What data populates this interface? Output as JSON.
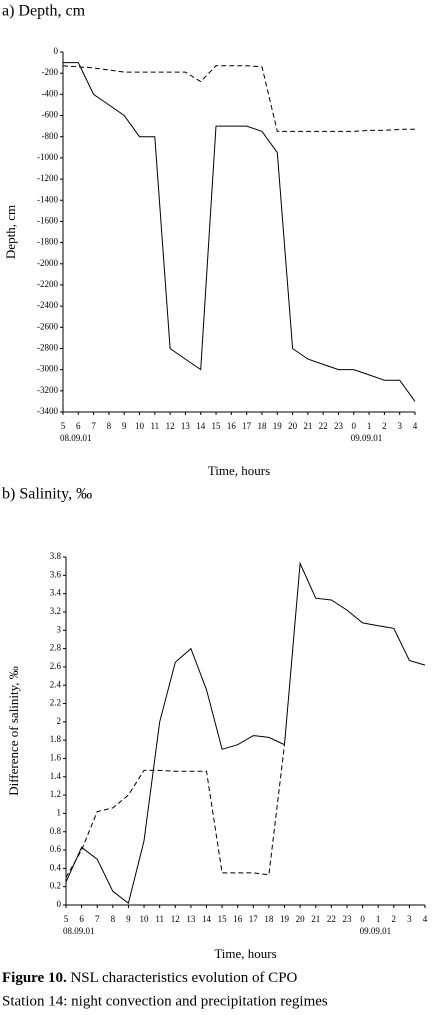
{
  "chart_data": [
    {
      "type": "line",
      "title": "a) Depth, cm",
      "ylabel": "Depth, cm",
      "xlabel": "Time, hours",
      "categories": [
        "5",
        "6",
        "7",
        "8",
        "9",
        "10",
        "11",
        "12",
        "13",
        "14",
        "15",
        "16",
        "17",
        "18",
        "19",
        "20",
        "21",
        "22",
        "23",
        "0",
        "1",
        "2",
        "3",
        "4"
      ],
      "x_sublabels": [
        "08.09.01",
        null,
        null,
        null,
        null,
        null,
        null,
        null,
        null,
        null,
        null,
        null,
        null,
        null,
        null,
        null,
        null,
        null,
        null,
        "09.09.01",
        null,
        null,
        null,
        null
      ],
      "ylim": [
        -3400,
        0
      ],
      "yticks": [
        0,
        -200,
        -400,
        -600,
        -800,
        -1000,
        -1200,
        -1400,
        -1600,
        -1800,
        -2000,
        -2200,
        -2400,
        -2600,
        -2800,
        -3000,
        -3200,
        -3400
      ],
      "series": [
        {
          "color": "#000000",
          "style": "solid",
          "values": [
            -100,
            -100,
            -400,
            -500,
            -600,
            -800,
            -800,
            -2800,
            -2900,
            -3000,
            -700,
            -700,
            -700,
            -750,
            -950,
            -2800,
            -2900,
            -2950,
            -3000,
            -3000,
            -3050,
            -3100,
            -3100,
            -3300
          ]
        },
        {
          "color": "#000000",
          "style": "dashed",
          "values": [
            -130,
            -140,
            -150,
            -170,
            -190,
            -190,
            -190,
            -190,
            -190,
            -280,
            -130,
            -130,
            -130,
            -140,
            -750,
            -750,
            -750,
            -750,
            -750,
            -750,
            -740,
            -740,
            -730,
            -730
          ]
        }
      ]
    },
    {
      "type": "line",
      "title": "b) Salinity, ‰",
      "ylabel": "Difference of salinity, ‰",
      "xlabel": "Time, hours",
      "categories": [
        "5",
        "6",
        "7",
        "8",
        "9",
        "10",
        "11",
        "12",
        "13",
        "14",
        "15",
        "16",
        "17",
        "18",
        "19",
        "20",
        "21",
        "22",
        "23",
        "0",
        "1",
        "2",
        "3",
        "4"
      ],
      "x_sublabels": [
        "08.09.01",
        null,
        null,
        null,
        null,
        null,
        null,
        null,
        null,
        null,
        null,
        null,
        null,
        null,
        null,
        null,
        null,
        null,
        null,
        "09.09.01",
        null,
        null,
        null,
        null
      ],
      "ylim": [
        0,
        3.8
      ],
      "yticks": [
        0,
        0.2,
        0.4,
        0.6,
        0.8,
        1,
        1.2,
        1.4,
        1.6,
        1.8,
        2,
        2.2,
        2.4,
        2.6,
        2.8,
        3,
        3.2,
        3.4,
        3.6,
        3.8
      ],
      "series": [
        {
          "color": "#000000",
          "style": "solid",
          "values": [
            0.25,
            0.63,
            0.5,
            0.15,
            0.02,
            0.7,
            2.0,
            2.65,
            2.8,
            2.35,
            1.7,
            1.75,
            1.85,
            1.83,
            1.75,
            3.73,
            3.35,
            3.33,
            3.22,
            3.08,
            3.05,
            3.02,
            2.67,
            2.62
          ]
        },
        {
          "color": "#000000",
          "style": "dashed",
          "values": [
            0.3,
            0.6,
            1.02,
            1.06,
            1.2,
            1.47,
            1.47,
            1.46,
            1.46,
            1.46,
            0.35,
            0.35,
            0.35,
            0.33,
            1.75,
            null,
            null,
            null,
            null,
            null,
            null,
            null,
            null,
            null
          ]
        }
      ]
    }
  ],
  "caption": {
    "label": "Figure 10.",
    "line1": "NSL characteristics evolution of CPO",
    "line2": "Station 14: night convection and precipitation regimes"
  }
}
